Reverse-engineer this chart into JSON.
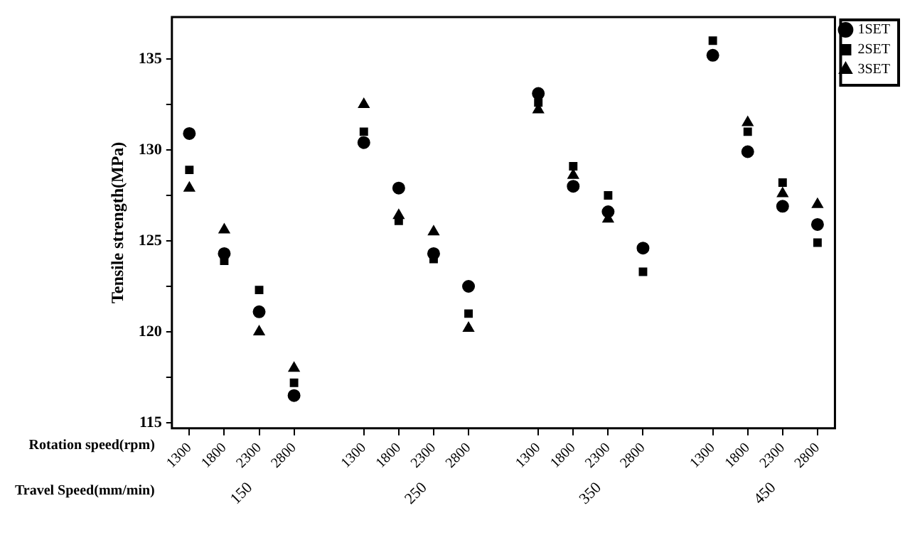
{
  "chart_data": {
    "type": "scatter",
    "ylabel": "Tensile strength(MPa)",
    "xlabel": "Rotation speed(rpm)",
    "categories": [
      "1300",
      "1800",
      "2300",
      "2800",
      null,
      "1300",
      "1800",
      "2300",
      "2800",
      null,
      "1300",
      "1800",
      "2300",
      "2800",
      null,
      "1300",
      "1800",
      "2300",
      "2800"
    ],
    "series": [
      {
        "name": "1SET",
        "color": "#000000",
        "marker": "circle",
        "values": [
          130.9,
          124.3,
          121.1,
          116.5,
          null,
          130.4,
          127.9,
          124.3,
          122.5,
          null,
          133.1,
          128.0,
          126.6,
          124.6,
          null,
          135.2,
          129.9,
          126.9,
          125.9
        ]
      },
      {
        "name": "2SET",
        "color": "#000000",
        "marker": "square",
        "values": [
          128.9,
          123.9,
          122.3,
          117.2,
          null,
          131.0,
          126.1,
          124.0,
          121.0,
          null,
          132.6,
          129.1,
          127.5,
          123.3,
          null,
          136.0,
          131.0,
          128.2,
          124.9
        ]
      },
      {
        "name": "3SET",
        "color": "#000000",
        "marker": "triangle",
        "values": [
          127.9,
          125.6,
          120.0,
          118.0,
          null,
          132.5,
          126.4,
          125.5,
          120.2,
          null,
          132.2,
          128.6,
          126.2,
          null,
          null,
          null,
          131.5,
          127.6,
          127.0
        ]
      }
    ],
    "annotations": [
      "Travel Speed(mm/min)",
      "150",
      "250",
      "350",
      "450"
    ],
    "ylim": [
      114.7,
      137.3
    ],
    "yticks": [
      115,
      {
        "value": 117.5,
        "label": null
      },
      120,
      {
        "value": 122.5,
        "label": null
      },
      125,
      {
        "value": 127.5,
        "label": null
      },
      130,
      {
        "value": 132.5,
        "label": null
      },
      135
    ],
    "grid": false,
    "legend": "top right"
  }
}
